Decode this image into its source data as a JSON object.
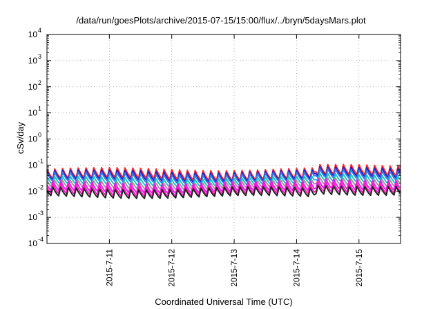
{
  "chart_data": {
    "type": "line",
    "title": "/data/run/goesPlots/archive/2015-07-15/15:00/flux/../bryn/5daysMars.plot",
    "xlabel": "Coordinated Universal Time (UTC)",
    "ylabel": "cSv/day",
    "yscale": "log",
    "ylim": [
      0.0001,
      10000
    ],
    "y_ticks": [
      {
        "base": "10",
        "exp": "-4",
        "value": 0.0001
      },
      {
        "base": "10",
        "exp": "-3",
        "value": 0.001
      },
      {
        "base": "10",
        "exp": "-2",
        "value": 0.01
      },
      {
        "base": "10",
        "exp": "-1",
        "value": 0.1
      },
      {
        "base": "10",
        "exp": "0",
        "value": 1
      },
      {
        "base": "10",
        "exp": "1",
        "value": 10
      },
      {
        "base": "10",
        "exp": "2",
        "value": 100
      },
      {
        "base": "10",
        "exp": "3",
        "value": 1000
      },
      {
        "base": "10",
        "exp": "4",
        "value": 10000
      }
    ],
    "xlim": [
      "2015-07-10 00:00",
      "2015-07-15 16:00"
    ],
    "x_ticks": [
      {
        "label": "2015-7-11",
        "date": "2015-07-11"
      },
      {
        "label": "2015-7-12",
        "date": "2015-07-12"
      },
      {
        "label": "2015-7-13",
        "date": "2015-07-13"
      },
      {
        "label": "2015-7-14",
        "date": "2015-07-14"
      },
      {
        "label": "2015-7-15",
        "date": "2015-07-15"
      }
    ],
    "grid": true,
    "legend": "none",
    "oscillation_period_hours": 3,
    "series": [
      {
        "color": "#ff2a2a",
        "peak": 0.07,
        "trough": 0.027
      },
      {
        "color": "#2424c8",
        "peak": 0.062,
        "trough": 0.024
      },
      {
        "color": "#3a78e6",
        "peak": 0.055,
        "trough": 0.021
      },
      {
        "color": "#19c6c6",
        "peak": 0.04,
        "trough": 0.016
      },
      {
        "color": "#9a9a9a",
        "peak": 0.03,
        "trough": 0.012
      },
      {
        "color": "#e61ee6",
        "peak": 0.022,
        "trough": 0.0085
      },
      {
        "color": "#ff18c8",
        "peak": 0.018,
        "trough": 0.0068
      },
      {
        "color": "#222222",
        "peak": 0.015,
        "trough": 0.0058
      }
    ]
  }
}
